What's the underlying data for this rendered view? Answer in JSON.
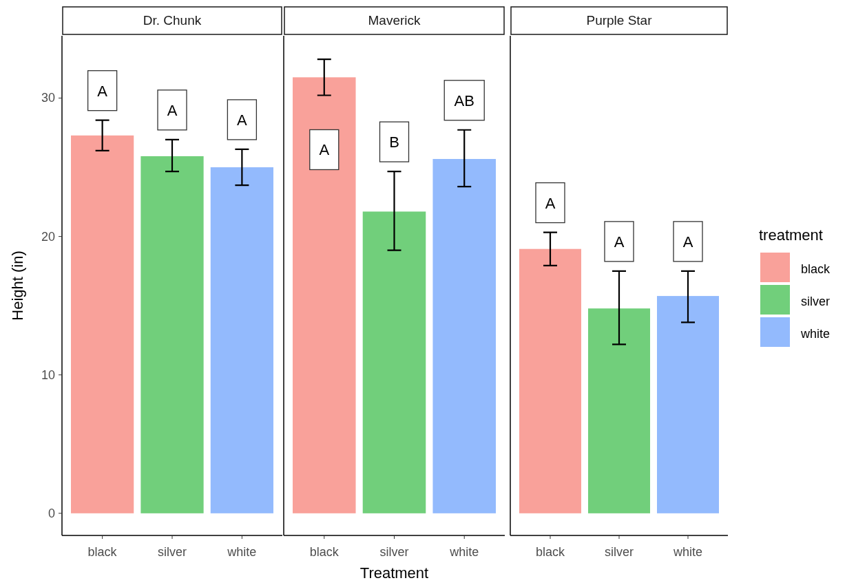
{
  "chart_data": [
    {
      "type": "bar",
      "title": "Dr. Chunk",
      "ylabel": "Height (in)",
      "categories": [
        "black",
        "silver",
        "white"
      ],
      "values": [
        27.3,
        25.8,
        25.0
      ],
      "colors": [
        "#f9a19a",
        "#71cf7b",
        "#93bafd"
      ],
      "errors": [
        [
          26.2,
          28.4
        ],
        [
          24.7,
          27.0
        ],
        [
          23.7,
          26.3
        ]
      ],
      "annotations": [
        "A",
        "A",
        "A"
      ],
      "ylim": [
        -1.6,
        34.5
      ],
      "yticks": [
        0,
        10,
        20,
        30
      ],
      "legend": false
    },
    {
      "type": "bar",
      "title": "Maverick",
      "xlabel": "Treatment",
      "categories": [
        "black",
        "silver",
        "white"
      ],
      "values": [
        31.5,
        21.8,
        25.6
      ],
      "colors": [
        "#f9a19a",
        "#71cf7b",
        "#93bafd"
      ],
      "errors": [
        [
          30.2,
          32.8
        ],
        [
          19.0,
          24.7
        ],
        [
          23.6,
          27.7
        ]
      ],
      "annotations": [
        "A",
        "B",
        "AB"
      ],
      "ylim": [
        -1.6,
        34.5
      ],
      "tick_labels": "x",
      "legend": false
    },
    {
      "type": "bar",
      "title": "Purple Star",
      "legend_title": "treatment",
      "categories": [
        "black",
        "silver",
        "white"
      ],
      "series": [
        {
          "name": "black",
          "color": "#f9a19a",
          "values": [
            19.1,
            null,
            null
          ],
          "errors": [
            [
              17.9,
              20.3
            ],
            null,
            null
          ]
        },
        {
          "name": "silver",
          "color": "#71cf7b",
          "values": [
            null,
            14.8,
            null
          ],
          "errors": [
            null,
            [
              12.2,
              17.5
            ],
            null
          ]
        },
        {
          "name": "white",
          "color": "#93bafd",
          "values": [
            null,
            null,
            15.7
          ],
          "errors": [
            null,
            null,
            [
              13.8,
              17.5
            ]
          ]
        }
      ],
      "annotations": [
        "A",
        "A",
        "A"
      ],
      "ylim": [
        -1.6,
        34.5
      ],
      "tick_labels": "x",
      "legend": "right"
    }
  ]
}
